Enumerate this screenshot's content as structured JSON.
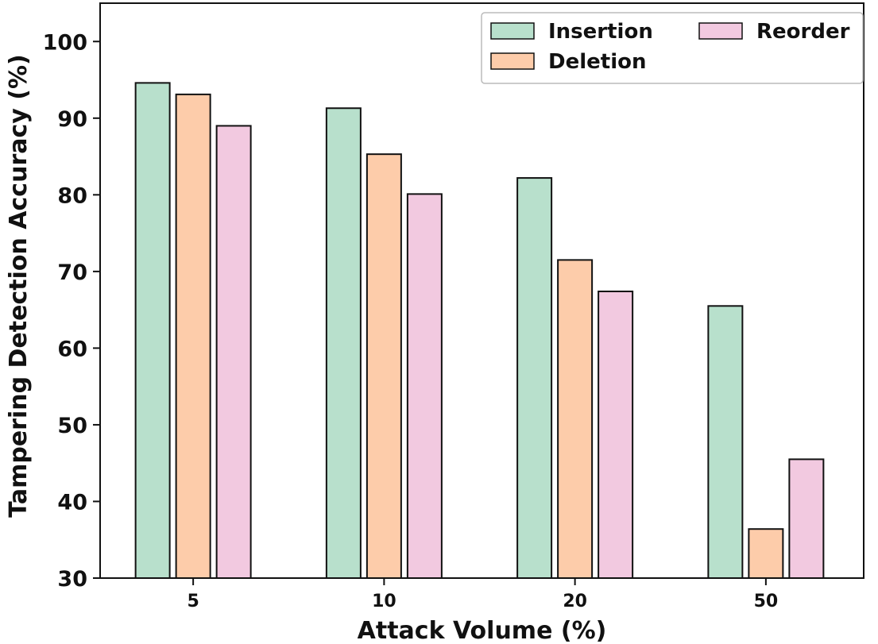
{
  "chart_data": {
    "type": "bar",
    "xlabel": "Attack Volume (%)",
    "ylabel": "Tampering Detection Accuracy (%)",
    "categories": [
      "5",
      "10",
      "20",
      "50"
    ],
    "ylim": [
      30,
      105
    ],
    "yticks": [
      30,
      40,
      50,
      60,
      70,
      80,
      90,
      100
    ],
    "grid": false,
    "legend_position": "top-right",
    "series": [
      {
        "name": "Insertion",
        "color": "#b8e0cc",
        "values": [
          94.6,
          91.3,
          82.2,
          65.5
        ]
      },
      {
        "name": "Deletion",
        "color": "#fdccaa",
        "values": [
          93.1,
          85.3,
          71.5,
          36.4
        ]
      },
      {
        "name": "Reorder",
        "color": "#f2c9e0",
        "values": [
          89.0,
          80.1,
          67.4,
          45.5
        ]
      }
    ]
  }
}
